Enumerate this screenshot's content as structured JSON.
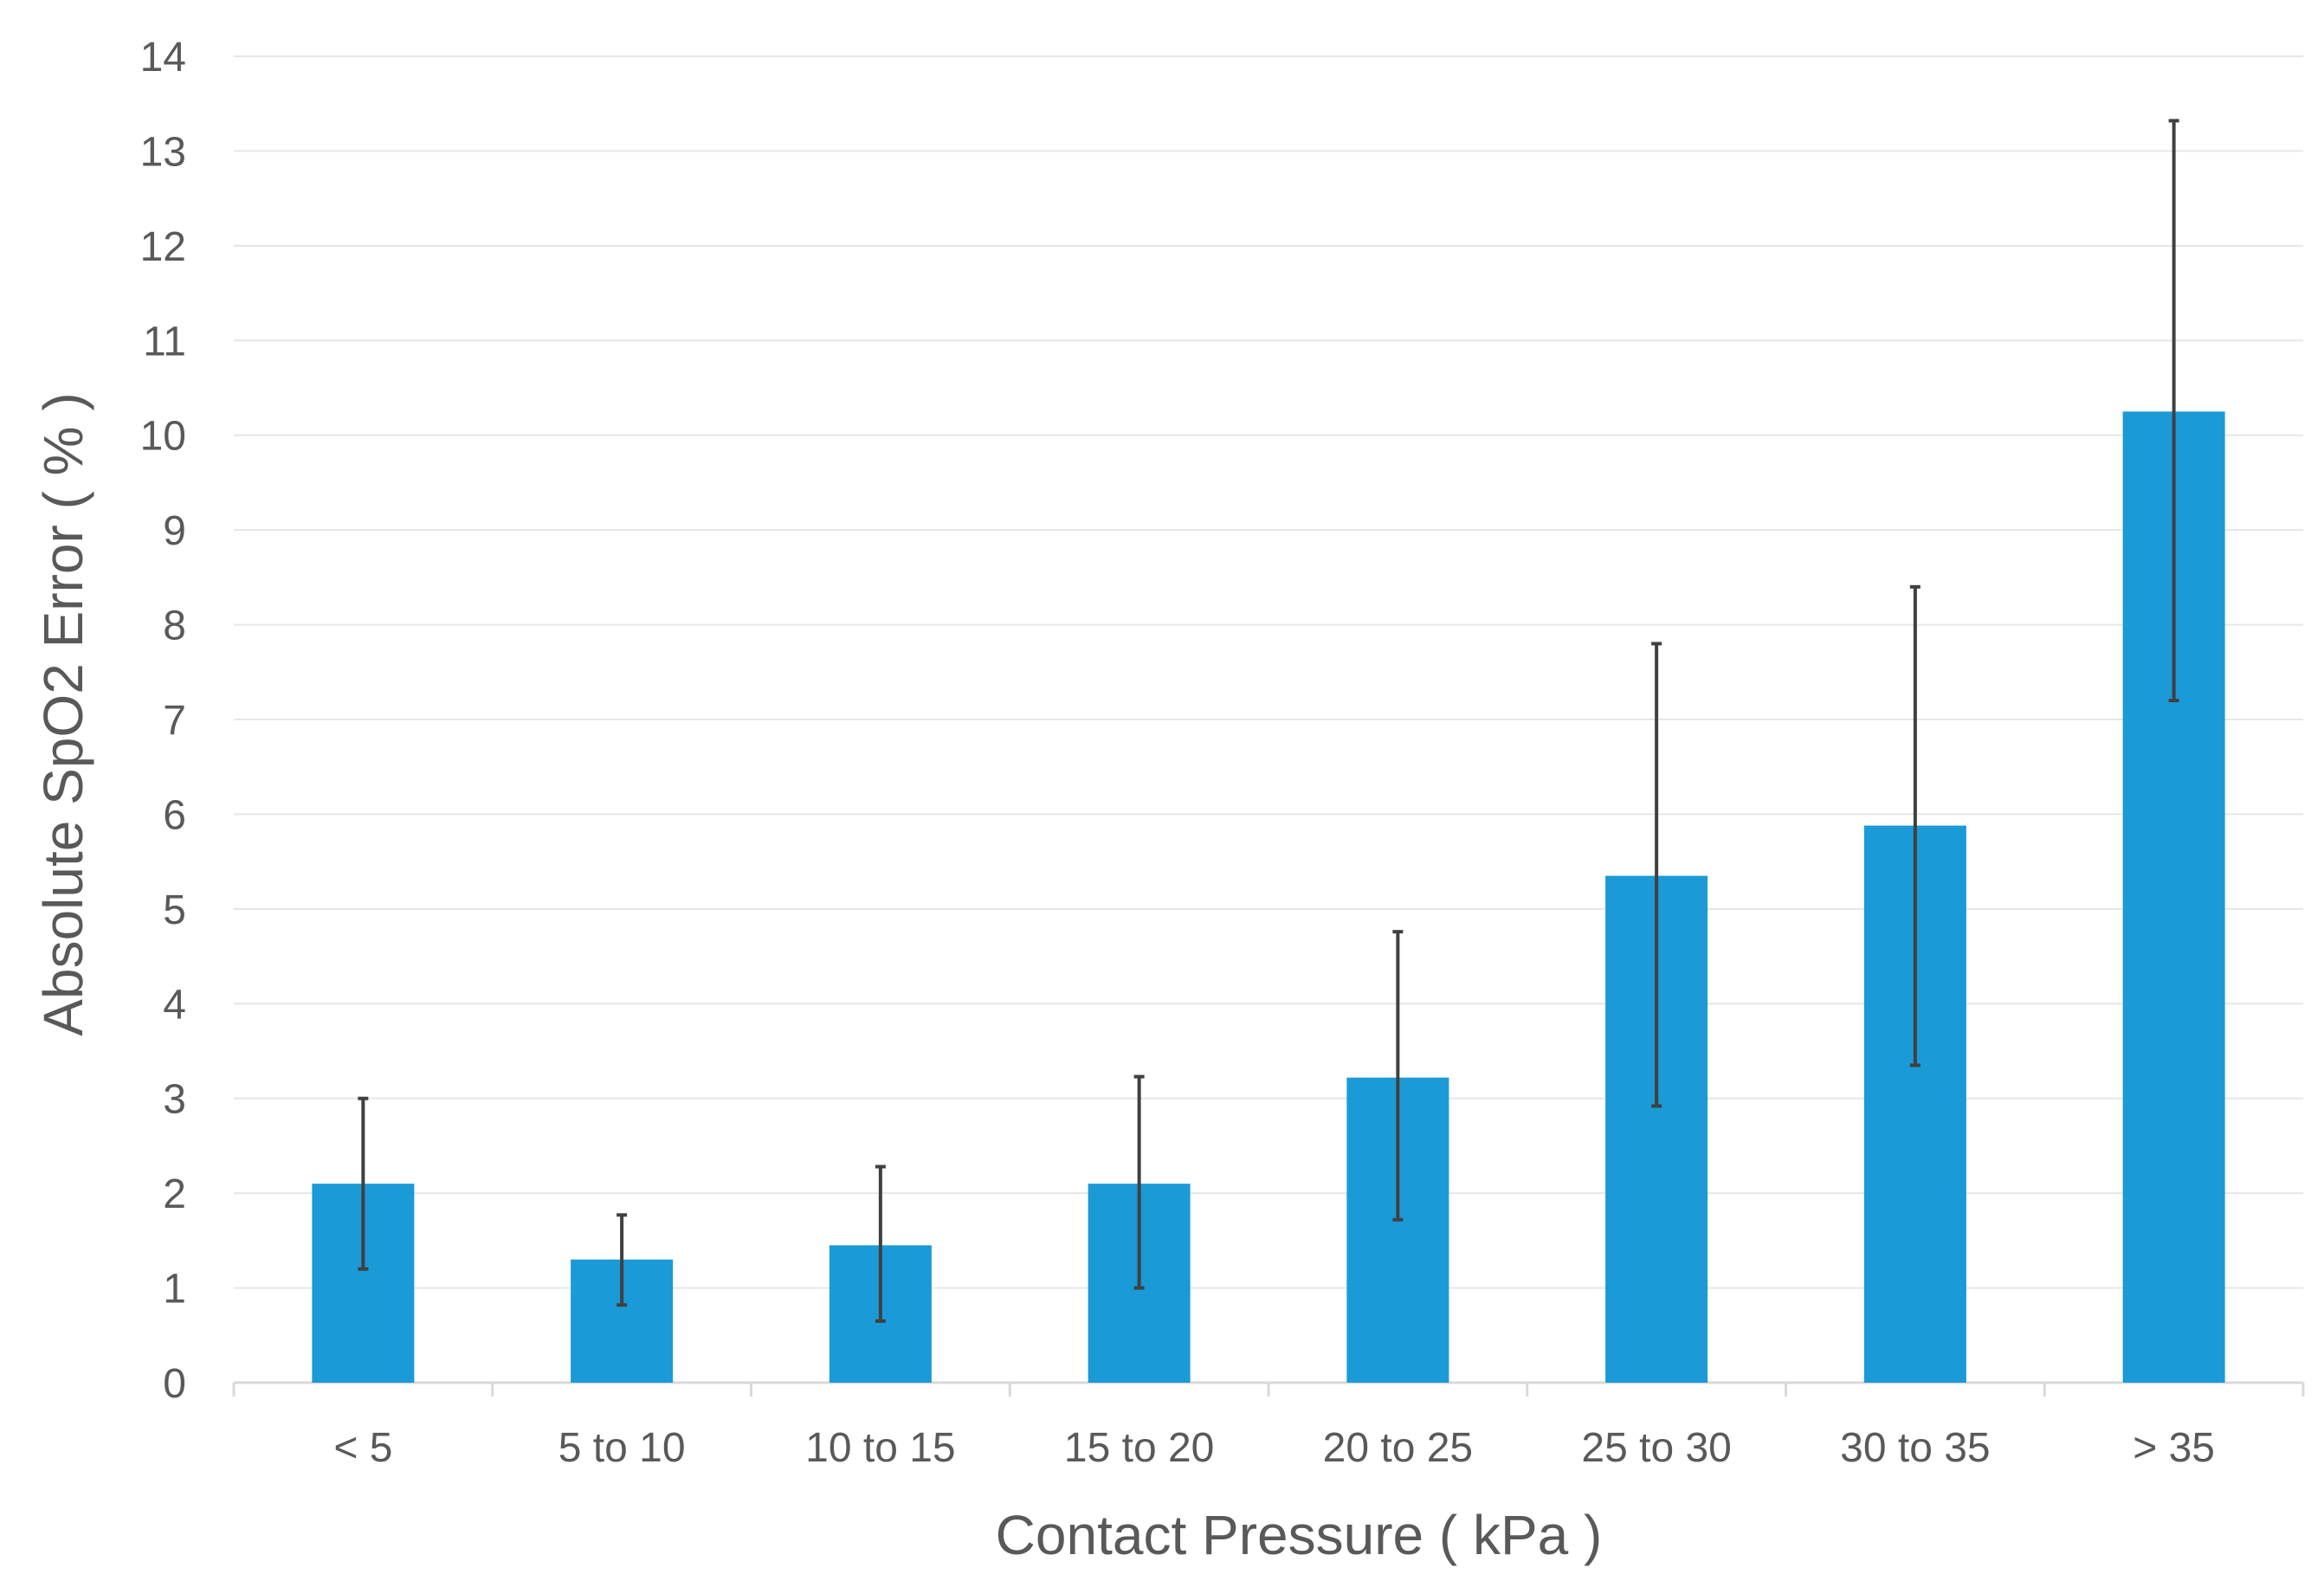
{
  "chart_data": {
    "type": "bar",
    "title": "",
    "xlabel": "Contact Pressure ( kPa )",
    "ylabel": "Absolute SpO2 Error ( % )",
    "categories": [
      "< 5",
      "5 to 10",
      "10 to 15",
      "15 to 20",
      "20 to 25",
      "25 to 30",
      "30 to 35",
      "> 35"
    ],
    "values": [
      2.1,
      1.3,
      1.45,
      2.1,
      3.22,
      5.35,
      5.88,
      10.25
    ],
    "error_low": [
      1.2,
      0.82,
      0.65,
      1.0,
      1.72,
      2.92,
      3.35,
      7.2
    ],
    "error_high": [
      3.0,
      1.77,
      2.28,
      3.23,
      4.76,
      7.8,
      8.4,
      13.32
    ],
    "ylim": [
      0,
      14
    ],
    "yticks": [
      0,
      1,
      2,
      3,
      4,
      5,
      6,
      7,
      8,
      9,
      10,
      11,
      12,
      13,
      14
    ],
    "grid": true,
    "bar_color": "#1a9ad6",
    "error_bar_color": "#404040",
    "gridline_color": "#e6e6e6",
    "axis_line_color": "#d9d9d9",
    "text_color": "#595959"
  }
}
